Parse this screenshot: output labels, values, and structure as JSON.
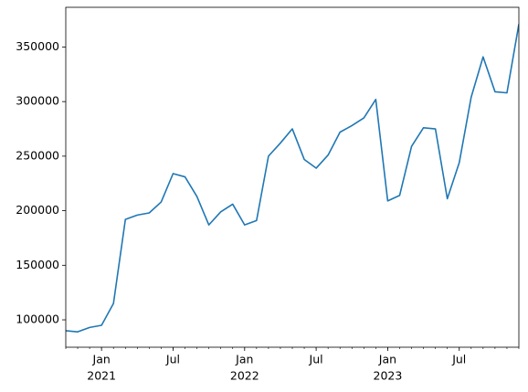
{
  "chart_data": {
    "type": "line",
    "x": [
      "2020-10",
      "2020-11",
      "2020-12",
      "2021-01",
      "2021-02",
      "2021-03",
      "2021-04",
      "2021-05",
      "2021-06",
      "2021-07",
      "2021-08",
      "2021-09",
      "2021-10",
      "2021-11",
      "2021-12",
      "2022-01",
      "2022-02",
      "2022-03",
      "2022-04",
      "2022-05",
      "2022-06",
      "2022-07",
      "2022-08",
      "2022-09",
      "2022-10",
      "2022-11",
      "2022-12",
      "2023-01",
      "2023-02",
      "2023-03",
      "2023-04",
      "2023-05",
      "2023-06",
      "2023-07",
      "2023-08",
      "2023-09",
      "2023-10",
      "2023-11",
      "2023-12"
    ],
    "values": [
      90000,
      89000,
      93000,
      95000,
      115000,
      192000,
      196000,
      198000,
      208000,
      234000,
      231000,
      213000,
      187000,
      199000,
      206000,
      187000,
      191000,
      250000,
      262000,
      275000,
      247000,
      239000,
      251000,
      272000,
      278000,
      285000,
      302000,
      209000,
      214000,
      259000,
      276000,
      275000,
      211000,
      244000,
      304000,
      341000,
      309000,
      308000,
      371000
    ],
    "color": "#1f77b4",
    "xlim": [
      "2020-10",
      "2023-12"
    ],
    "xticks": [
      {
        "value": "2021-01",
        "label": "Jan",
        "year": "2021"
      },
      {
        "value": "2021-07",
        "label": "Jul"
      },
      {
        "value": "2022-01",
        "label": "Jan",
        "year": "2022"
      },
      {
        "value": "2022-07",
        "label": "Jul"
      },
      {
        "value": "2023-01",
        "label": "Jan",
        "year": "2023"
      },
      {
        "value": "2023-07",
        "label": "Jul"
      }
    ],
    "ylim": [
      74900,
      386400
    ],
    "yticks": [
      100000,
      150000,
      200000,
      250000,
      300000,
      350000
    ],
    "grid": false
  }
}
